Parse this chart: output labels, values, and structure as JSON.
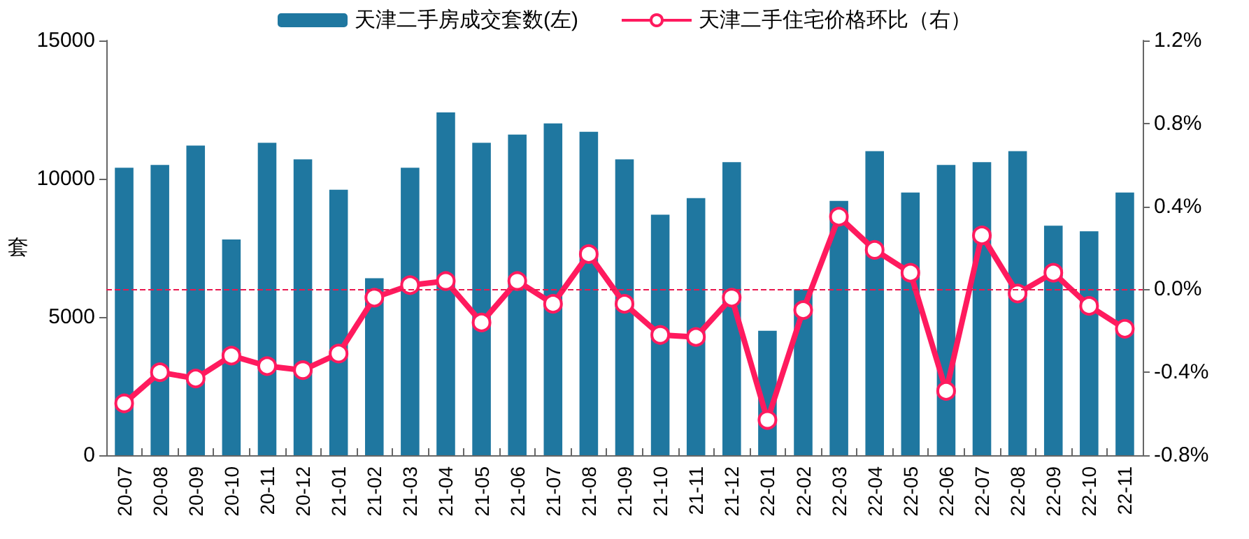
{
  "chart_data": {
    "type": "bar",
    "categories": [
      "20-07",
      "20-08",
      "20-09",
      "20-10",
      "20-11",
      "20-12",
      "21-01",
      "21-02",
      "21-03",
      "21-04",
      "21-05",
      "21-06",
      "21-07",
      "21-08",
      "21-09",
      "21-10",
      "21-11",
      "21-12",
      "22-01",
      "22-02",
      "22-03",
      "22-04",
      "22-05",
      "22-06",
      "22-07",
      "22-08",
      "22-09",
      "22-10",
      "22-11"
    ],
    "series": [
      {
        "name": "天津二手房成交套数(左)",
        "color": "#1f77a0",
        "values": [
          10400,
          10500,
          11200,
          7800,
          11300,
          10700,
          9600,
          6400,
          10400,
          12400,
          11300,
          11600,
          12000,
          11700,
          10700,
          8700,
          9300,
          10600,
          4500,
          6000,
          9200,
          11000,
          9500,
          10500,
          10600,
          11000,
          8300,
          8100,
          9500
        ]
      },
      {
        "name": "天津二手住宅价格环比（右）",
        "type": "line",
        "axis": "y2",
        "color": "#ff1a5e",
        "marker": "circle",
        "values": [
          -0.55,
          -0.4,
          -0.43,
          -0.32,
          -0.37,
          -0.39,
          -0.31,
          -0.04,
          0.02,
          0.04,
          -0.16,
          0.04,
          -0.07,
          0.17,
          -0.07,
          -0.22,
          -0.23,
          -0.04,
          -0.63,
          -0.1,
          0.35,
          0.19,
          0.08,
          -0.49,
          0.26,
          -0.02,
          0.08,
          -0.08,
          -0.19
        ]
      }
    ],
    "ylabel": "套",
    "ylim": [
      0,
      15000
    ],
    "yticks": [
      0,
      5000,
      10000,
      15000
    ],
    "y2lim": [
      -0.8,
      1.2
    ],
    "y2ticks": [
      {
        "value": -0.8,
        "label": "-0.8%"
      },
      {
        "value": -0.4,
        "label": "-0.4%"
      },
      {
        "value": 0,
        "label": "0.0%"
      },
      {
        "value": 0.4,
        "label": "0.4%"
      },
      {
        "value": 0.8,
        "label": "0.8%"
      },
      {
        "value": 1.2,
        "label": "1.2%"
      }
    ],
    "ref_lines": [
      {
        "axis": "y2",
        "value": 0,
        "color": "#e8194f",
        "line_style": "dashed"
      }
    ],
    "grid": false,
    "legend": "top"
  }
}
